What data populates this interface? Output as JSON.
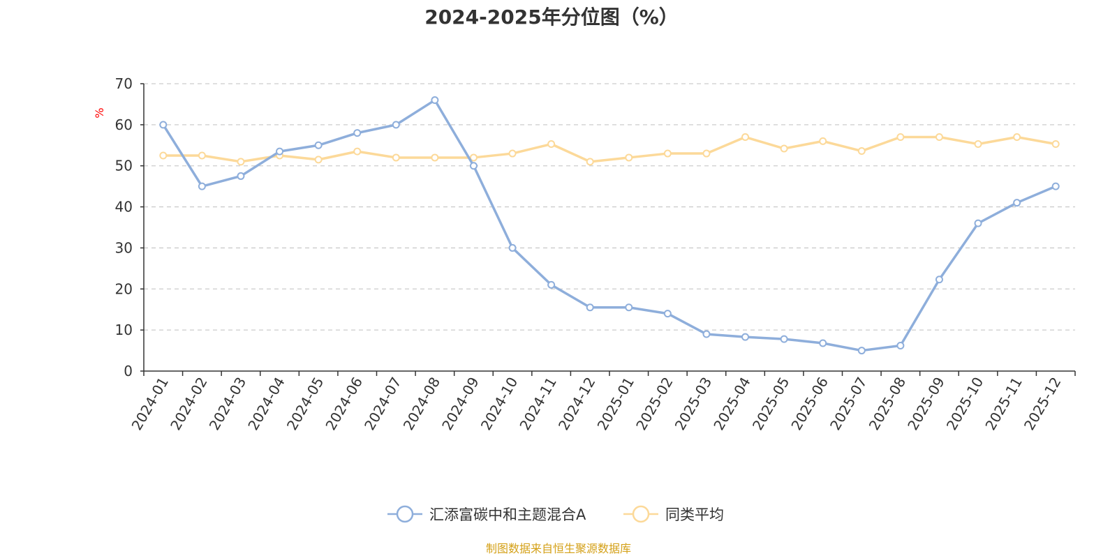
{
  "chart_data": {
    "type": "line",
    "title": "2024-2025年分位图（%）",
    "ylabel": "%",
    "xlabel": "",
    "ylim": [
      0,
      70
    ],
    "yticks": [
      0,
      10,
      20,
      30,
      40,
      50,
      60,
      70
    ],
    "grid": true,
    "legend_position": "bottom-center",
    "categories": [
      "2024-01",
      "2024-02",
      "2024-03",
      "2024-04",
      "2024-05",
      "2024-06",
      "2024-07",
      "2024-08",
      "2024-09",
      "2024-10",
      "2024-11",
      "2024-12",
      "2025-01",
      "2025-02",
      "2025-03",
      "2025-04",
      "2025-05",
      "2025-06",
      "2025-07",
      "2025-08",
      "2025-09",
      "2025-10",
      "2025-11",
      "2025-12"
    ],
    "series": [
      {
        "name": "汇添富碳中和主题混合A",
        "color": "#8eaedb",
        "values": [
          60,
          45,
          47.5,
          53.5,
          55,
          58,
          60,
          66,
          50,
          30,
          21,
          15.5,
          15.5,
          14,
          9,
          8.3,
          7.8,
          6.8,
          5,
          6.2,
          22.3,
          36,
          41,
          45
        ]
      },
      {
        "name": "同类平均",
        "color": "#fcd999",
        "values": [
          52.5,
          52.5,
          51,
          52.5,
          51.5,
          53.5,
          52,
          52,
          52,
          53,
          55.3,
          51,
          52,
          53,
          53,
          57,
          54.2,
          56,
          53.6,
          57,
          57,
          55.3,
          57,
          55.3
        ]
      }
    ],
    "source": "制图数据来自恒生聚源数据库",
    "colors": {
      "axis": "#333333",
      "grid": "#cccccc",
      "unit_label": "#ff0000",
      "source_text": "#d4a017"
    }
  }
}
